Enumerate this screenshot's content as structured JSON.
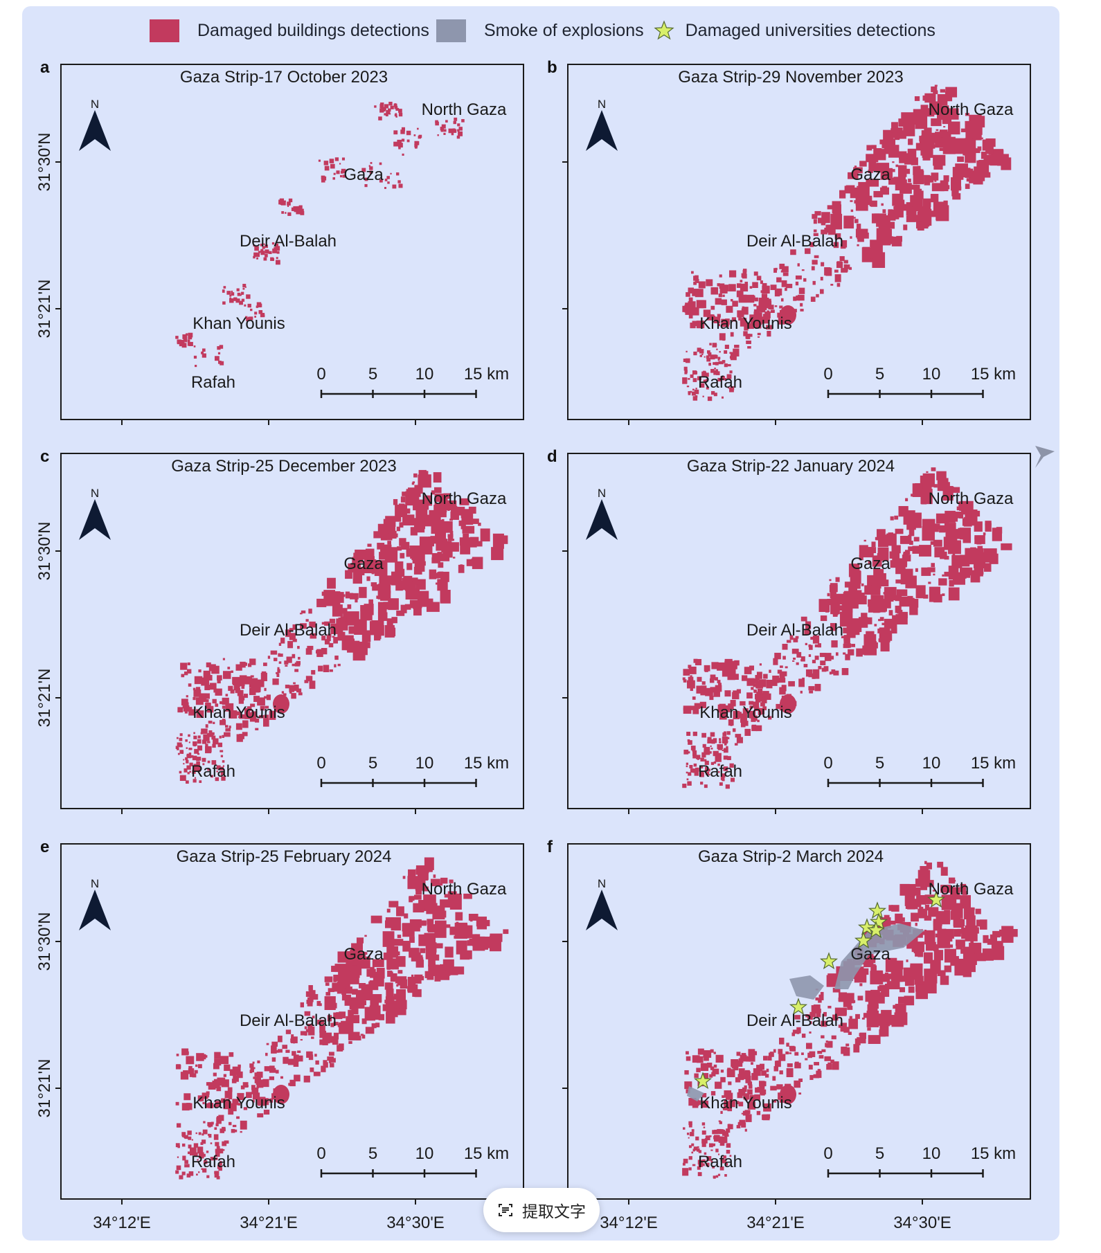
{
  "legend": {
    "damage_label": "Damaged buildings detections",
    "smoke_label": "Smoke of explosions",
    "universities_label": "Damaged universities detections",
    "damage_color": "#c23a5e",
    "smoke_color": "#8e96ad",
    "star_color": "#d8ef6a"
  },
  "panels": [
    {
      "letter": "a",
      "title": "Gaza Strip-17 October 2023",
      "damage_level": "low",
      "universities": false
    },
    {
      "letter": "b",
      "title": "Gaza Strip-29 November 2023",
      "damage_level": "high",
      "universities": false
    },
    {
      "letter": "c",
      "title": "Gaza Strip-25 December 2023",
      "damage_level": "high",
      "universities": false
    },
    {
      "letter": "d",
      "title": "Gaza Strip-22 January 2024",
      "damage_level": "high",
      "universities": false
    },
    {
      "letter": "e",
      "title": "Gaza Strip-25 February 2024",
      "damage_level": "high",
      "universities": false
    },
    {
      "letter": "f",
      "title": "Gaza Strip-2 March 2024",
      "damage_level": "high",
      "universities": true
    }
  ],
  "cities": {
    "north_gaza": "North Gaza",
    "gaza": "Gaza",
    "deir_al_balah": "Deir Al-Balah",
    "khan_younis": "Khan Younis",
    "rafah": "Rafah"
  },
  "north_arrow": "N",
  "scale_bar": {
    "t0": "0",
    "t5": "5",
    "t10": "10",
    "t15": "15 km"
  },
  "lat_labels": {
    "lat1": "31°30'N",
    "lat2": "31°21'N"
  },
  "lon_labels": {
    "lon1": "34°12'E",
    "lon2": "34°21'E",
    "lon3": "34°30'E"
  },
  "ocr_button": {
    "label": "提取文字"
  }
}
